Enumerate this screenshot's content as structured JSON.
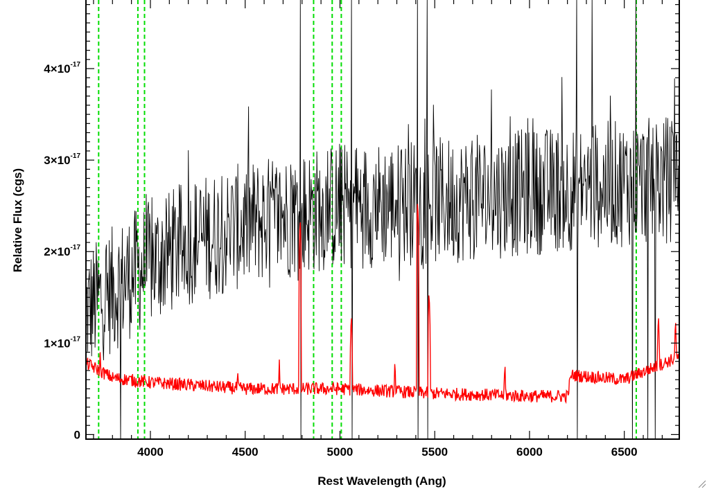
{
  "chart_data": {
    "type": "line",
    "xlabel": "Rest Wavelength (Ang)",
    "ylabel": "Relative Flux (cgs)",
    "xlim": [
      3660,
      6790
    ],
    "ylim": [
      -5e-19,
      4.75e-17
    ],
    "x_ticks": [
      {
        "value": 4000,
        "label": "4000"
      },
      {
        "value": 4500,
        "label": "4500"
      },
      {
        "value": 5000,
        "label": "5000"
      },
      {
        "value": 5500,
        "label": "5500"
      },
      {
        "value": 6000,
        "label": "6000"
      },
      {
        "value": 6500,
        "label": "6500"
      }
    ],
    "y_ticks": [
      {
        "value": 0,
        "mant": "0",
        "exp": ""
      },
      {
        "value": 1e-17,
        "mant": "1×10",
        "exp": "-17"
      },
      {
        "value": 2e-17,
        "mant": "2×10",
        "exp": "-17"
      },
      {
        "value": 3e-17,
        "mant": "3×10",
        "exp": "-17"
      },
      {
        "value": 4e-17,
        "mant": "4×10",
        "exp": "-17"
      }
    ],
    "grid": false,
    "vertical_markers": {
      "color": "#00dd00",
      "style": "dashed",
      "x": [
        3727,
        3934,
        3969,
        4861,
        4959,
        5007,
        6563
      ]
    },
    "series": [
      {
        "color": "#000000",
        "kind": "noisy_spectrum",
        "continuum": [
          [
            3660,
            1.35e-17
          ],
          [
            3900,
            1.75e-17
          ],
          [
            4200,
            2.1e-17
          ],
          [
            4600,
            2.35e-17
          ],
          [
            5000,
            2.5e-17
          ],
          [
            5500,
            2.55e-17
          ],
          [
            6000,
            2.65e-17
          ],
          [
            6500,
            2.75e-17
          ],
          [
            6790,
            2.8e-17
          ]
        ],
        "noise_amplitude": 7e-18,
        "spikes": [
          {
            "x": 4790,
            "y": 4.8e-17
          },
          {
            "x": 5060,
            "y": 4.8e-17
          },
          {
            "x": 5410,
            "y": 4.8e-17
          },
          {
            "x": 5460,
            "y": 4.8e-17
          },
          {
            "x": 6250,
            "y": 4.8e-17
          },
          {
            "x": 6330,
            "y": 4.8e-17
          },
          {
            "x": 6560,
            "y": 4.8e-17
          }
        ],
        "dips": [
          {
            "x": 3840,
            "y": -1e-18
          },
          {
            "x": 4790,
            "y": -1e-18
          },
          {
            "x": 5060,
            "y": -1e-18
          },
          {
            "x": 5410,
            "y": -1e-18
          },
          {
            "x": 5460,
            "y": -1e-18
          },
          {
            "x": 6250,
            "y": -1e-18
          },
          {
            "x": 6540,
            "y": -1e-18
          },
          {
            "x": 6620,
            "y": -1e-18
          },
          {
            "x": 6660,
            "y": -1e-18
          }
        ]
      },
      {
        "color": "#ff0000",
        "kind": "error_spectrum",
        "continuum": [
          [
            3660,
            7.8e-18
          ],
          [
            3800,
            6.2e-18
          ],
          [
            4000,
            5.7e-18
          ],
          [
            4500,
            5e-18
          ],
          [
            5000,
            5e-18
          ],
          [
            5500,
            4.5e-18
          ],
          [
            6000,
            4.2e-18
          ],
          [
            6200,
            4.2e-18
          ],
          [
            6220,
            6.5e-18
          ],
          [
            6500,
            6e-18
          ],
          [
            6790,
            8.5e-18
          ]
        ],
        "noise_amplitude": 7e-19,
        "peaks": [
          {
            "x": 3735,
            "y": 9e-18
          },
          {
            "x": 4460,
            "y": 7.5e-18
          },
          {
            "x": 4680,
            "y": 8.2e-18
          },
          {
            "x": 4790,
            "y": 2.4e-17
          },
          {
            "x": 5060,
            "y": 1.35e-17
          },
          {
            "x": 5290,
            "y": 8.5e-18
          },
          {
            "x": 5410,
            "y": 2.6e-17
          },
          {
            "x": 5470,
            "y": 1.6e-17
          },
          {
            "x": 5870,
            "y": 8.2e-18
          },
          {
            "x": 6680,
            "y": 1.35e-17
          },
          {
            "x": 6770,
            "y": 1.3e-17
          }
        ]
      }
    ]
  }
}
